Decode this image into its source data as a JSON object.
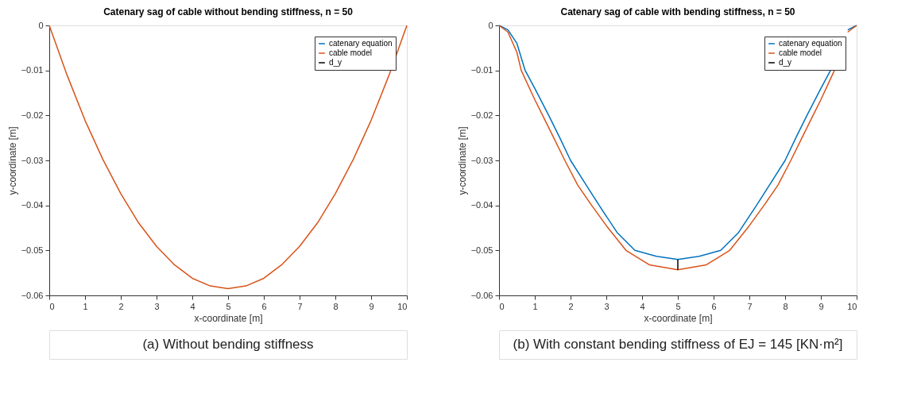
{
  "chart_data": [
    {
      "type": "line",
      "title": "Catenary sag of cable without bending stiffness, n = 50",
      "xlabel": "x-coordinate [m]",
      "ylabel": "y-coordinate [m]",
      "xlim": [
        0,
        10
      ],
      "ylim": [
        -0.06,
        0
      ],
      "xticks": [
        0,
        1,
        2,
        3,
        4,
        5,
        6,
        7,
        8,
        9,
        10
      ],
      "yticks": [
        -0.06,
        -0.05,
        -0.04,
        -0.03,
        -0.02,
        -0.01,
        {
          "value": 0,
          "label": "0"
        }
      ],
      "legend": "top right",
      "annotations": [
        "(a) Without bending stiffness"
      ],
      "series": [
        {
          "name": "catenary equation",
          "color": "#0072bd"
        },
        {
          "name": "cable model",
          "color": "#d95319",
          "x": [
            0,
            0.5,
            1,
            1.5,
            2,
            2.5,
            3,
            3.5,
            4,
            4.5,
            5,
            5.5,
            6,
            6.5,
            7,
            7.5,
            8,
            8.5,
            9,
            9.5,
            10
          ],
          "values": [
            0,
            -0.0111,
            -0.0211,
            -0.0298,
            -0.0374,
            -0.0439,
            -0.0491,
            -0.0532,
            -0.0562,
            -0.0579,
            -0.0585,
            -0.0579,
            -0.0562,
            -0.0532,
            -0.0491,
            -0.0439,
            -0.0374,
            -0.0298,
            -0.0211,
            -0.0111,
            0
          ]
        },
        {
          "name": "d_y",
          "color": "#000000"
        }
      ]
    },
    {
      "type": "line",
      "title": "Catenary sag of cable with bending stiffness, n = 50",
      "xlabel": "x-coordinate [m]",
      "ylabel": "y-coordinate [m]",
      "xlim": [
        0,
        10
      ],
      "ylim": [
        -0.06,
        0
      ],
      "xticks": [
        0,
        1,
        2,
        3,
        4,
        5,
        6,
        7,
        8,
        9,
        10
      ],
      "yticks": [
        -0.06,
        -0.05,
        -0.04,
        -0.03,
        -0.02,
        -0.01,
        {
          "value": 0,
          "label": "0"
        }
      ],
      "legend": "top right",
      "annotations": [
        "(b) With constant bending stiffness of EJ = 145 [KN·m²]"
      ],
      "series": [
        {
          "name": "catenary equation",
          "color": "#0072bd",
          "x": [
            0,
            0.25,
            0.5,
            0.73,
            1,
            1.39,
            1.7,
            2,
            2.4,
            2.8,
            3.3,
            3.8,
            4.4,
            5,
            5.6,
            6.2,
            6.7,
            7.2,
            7.6,
            8,
            8.3,
            8.61,
            9,
            9.27,
            9.5,
            9.75,
            10
          ],
          "values": [
            0,
            -0.001,
            -0.004,
            -0.01,
            -0.014,
            -0.02,
            -0.025,
            -0.03,
            -0.035,
            -0.04,
            -0.046,
            -0.05,
            -0.0513,
            -0.052,
            -0.0513,
            -0.05,
            -0.046,
            -0.04,
            -0.035,
            -0.03,
            -0.025,
            -0.02,
            -0.014,
            -0.01,
            null,
            -0.001,
            0
          ]
        },
        {
          "name": "cable model",
          "color": "#d95319",
          "x": [
            0,
            0.25,
            0.5,
            0.62,
            1,
            1.22,
            1.5,
            1.84,
            2.2,
            2.59,
            3,
            3.55,
            4.2,
            5,
            5.8,
            6.45,
            7,
            7.41,
            7.8,
            8.16,
            8.5,
            8.78,
            9,
            9.38,
            9.5,
            9.75,
            10
          ],
          "values": [
            0,
            -0.0015,
            -0.006,
            -0.01,
            -0.0165,
            -0.02,
            -0.0245,
            -0.03,
            -0.0355,
            -0.04,
            -0.0445,
            -0.05,
            -0.0532,
            -0.0543,
            -0.0532,
            -0.05,
            -0.0445,
            -0.04,
            -0.0355,
            -0.03,
            -0.0245,
            -0.02,
            -0.0165,
            -0.01,
            null,
            -0.0015,
            0
          ]
        },
        {
          "name": "d_y",
          "color": "#000000",
          "x": [
            5,
            5
          ],
          "values": [
            -0.052,
            -0.0543
          ]
        }
      ]
    }
  ]
}
